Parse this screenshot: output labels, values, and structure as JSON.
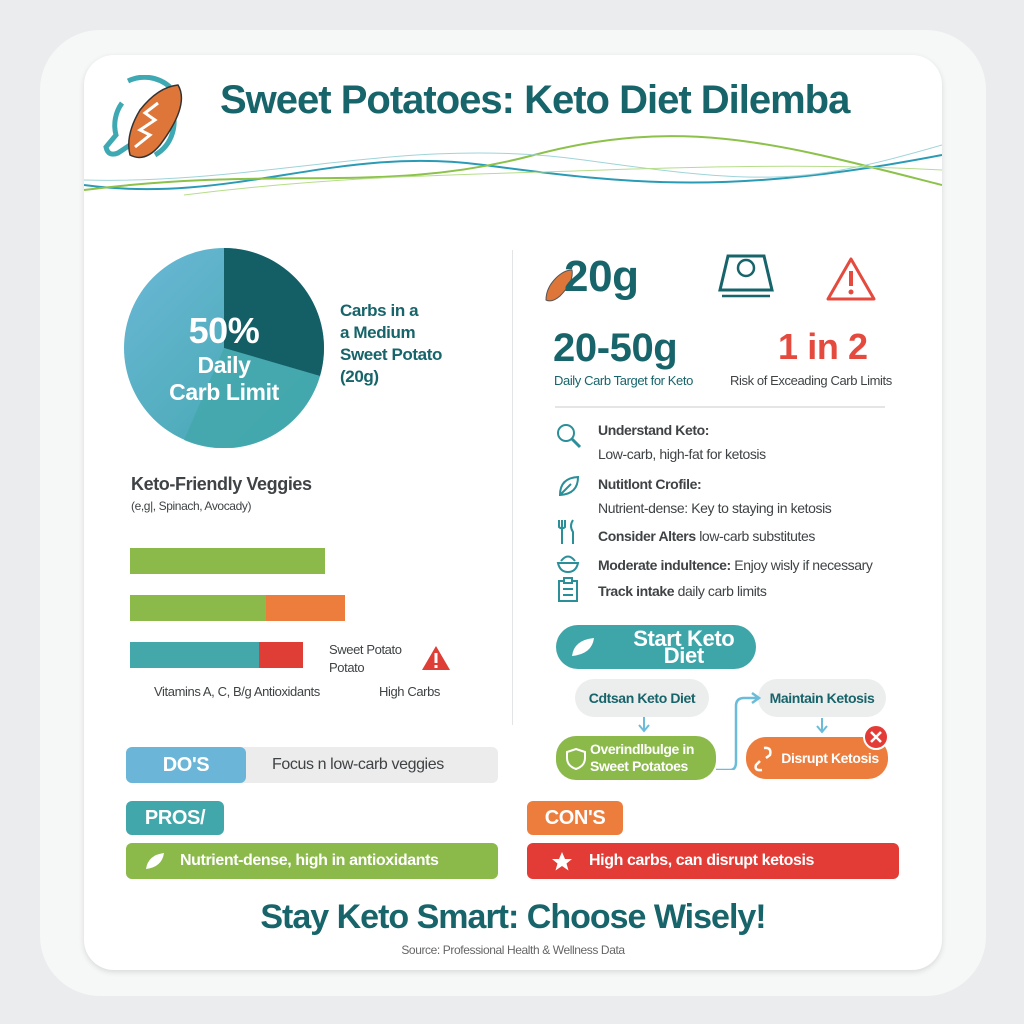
{
  "title": "Sweet Potatoes: Keto Diet Dilemba",
  "pie": {
    "percent": "50%",
    "label_line1": "Daily",
    "label_line2": "Carb Limit",
    "side_label": [
      "Carbs in a",
      "a Medium",
      "Sweet Potato",
      "(20g)"
    ],
    "colors": {
      "dark": "#145f66",
      "mid": "#3fa5ab",
      "light": "#6bb8d6"
    }
  },
  "veggies": {
    "title": "Keto-Friendly Veggies",
    "subtitle": "(e,g|, Spinach, Avocady)",
    "bars": [
      {
        "segments": [
          {
            "value": 195,
            "color": "#8bb94a"
          }
        ]
      },
      {
        "segments": [
          {
            "value": 136,
            "color": "#8bb94a"
          },
          {
            "value": 79,
            "color": "#ed7d3d"
          }
        ]
      },
      {
        "segments": [
          {
            "value": 129,
            "color": "#44a8ab"
          },
          {
            "value": 44,
            "color": "#de3e35"
          }
        ]
      }
    ],
    "sweet_potato_label": [
      "Sweet Potato",
      "Potato"
    ],
    "vitamins_label": "Vitamins A, C, B/g Antioxidants",
    "high_carbs_label": "High Carbs"
  },
  "stats": {
    "carbs": "20g",
    "target_value": "20-50g",
    "target_label": "Daily Carb Target for Keto",
    "risk_value": "1 in 2",
    "risk_label": "Risk of Exceading Carb Limits"
  },
  "tips": [
    {
      "icon": "magnifier-icon",
      "title": "Understand Keto:",
      "text": "Low-carb, high-fat for ketosis"
    },
    {
      "icon": "leaf-icon",
      "title": "Nutitlont Crofile:",
      "text": "Nutrient-dense: Key to staying in ketosis"
    },
    {
      "icon": "utensils-icon",
      "title": "Consider Alters",
      "text": " low-carb substitutes"
    },
    {
      "icon": "bowl-icon",
      "title": "Moderate indultence:",
      "text": " Enjoy wisly if necessary"
    },
    {
      "icon": "clipboard-icon",
      "title": "Track intake",
      "text": " daily carb limits"
    }
  ],
  "flow": {
    "start": "Start Keto Diet",
    "step1": "Cdtsan Keto Diet",
    "step2": "Overindlbulge in Sweet Potatoes",
    "step3": "Maintain Ketosis",
    "step4": "Disrupt Ketosis"
  },
  "dos": {
    "label": "DO'S",
    "text": "Focus n low-carb veggies"
  },
  "pros": {
    "label": "PROS/",
    "text": "Nutrient-dense, high in antioxidants"
  },
  "cons": {
    "label": "CON'S",
    "text": "High carbs, can disrupt ketosis"
  },
  "footer": {
    "tagline": "Stay Keto Smart: Choose Wisely!",
    "source": "Source: Professional Health & Wellness Data"
  }
}
